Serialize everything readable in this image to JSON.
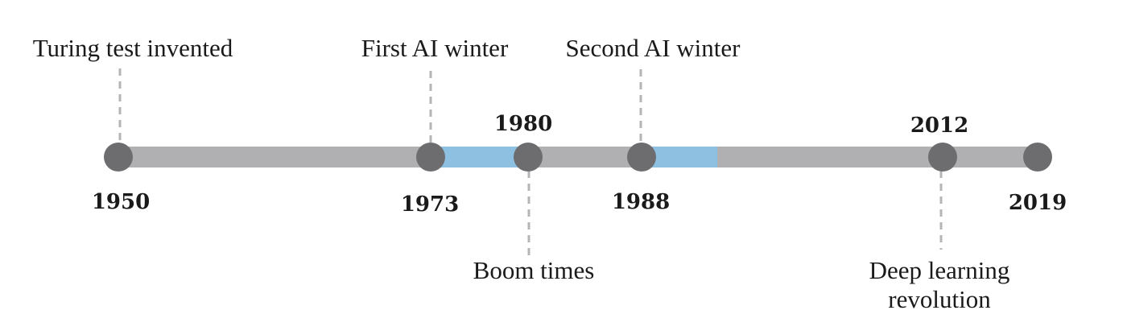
{
  "colors": {
    "track": "#b0b0b2",
    "highlight": "#8ec0e1",
    "node": "#6d6d70",
    "connector": "#b5b5b7",
    "text": "#1a1a1a"
  },
  "timeline": {
    "years": [
      {
        "id": "y1950",
        "label": "1950"
      },
      {
        "id": "y1973",
        "label": "1973"
      },
      {
        "id": "y1980",
        "label": "1980"
      },
      {
        "id": "y1988",
        "label": "1988"
      },
      {
        "id": "y2012",
        "label": "2012"
      },
      {
        "id": "y2019",
        "label": "2019"
      }
    ],
    "events": [
      {
        "id": "turing",
        "lines": [
          "Turing test invented"
        ]
      },
      {
        "id": "first-winter",
        "lines": [
          "First AI winter"
        ]
      },
      {
        "id": "boom",
        "lines": [
          "Boom times"
        ]
      },
      {
        "id": "second-winter",
        "lines": [
          "Second AI winter"
        ]
      },
      {
        "id": "deep-learning",
        "lines": [
          "Deep learning",
          "revolution"
        ]
      }
    ],
    "highlighted_periods": [
      {
        "id": "first-winter-period",
        "from": "1973",
        "to": "1980"
      },
      {
        "id": "second-winter-period",
        "from": "1988",
        "to": "1993"
      }
    ]
  }
}
